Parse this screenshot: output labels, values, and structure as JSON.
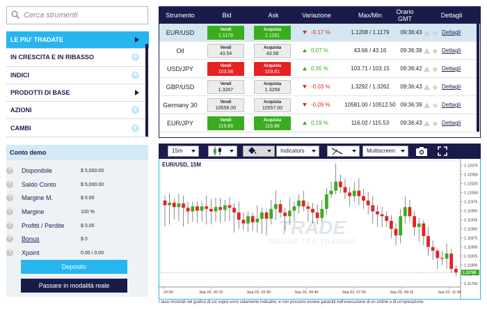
{
  "search": {
    "placeholder": "Cerca strumenti",
    "icon": "search-icon"
  },
  "menu": {
    "items": [
      {
        "label": "LE PIU' TRADATE",
        "active": true,
        "marker": "arrow"
      },
      {
        "label": "IN CRESCITA E IN RIBASSO",
        "active": false,
        "marker": "plus"
      },
      {
        "label": "INDICI",
        "active": false,
        "marker": "plus"
      },
      {
        "label": "PRODOTTI DI BASE",
        "active": false,
        "marker": "arrow"
      },
      {
        "label": "AZIONI",
        "active": false,
        "marker": "plus"
      },
      {
        "label": "CAMBI",
        "active": false,
        "marker": "plus"
      }
    ]
  },
  "demo": {
    "title": "Conto demo",
    "rows": [
      {
        "label": "Disponibile",
        "value": "$ 5,000.00",
        "link": false
      },
      {
        "label": "Saldo Conto",
        "value": "$ 5,000.00",
        "link": false
      },
      {
        "label": "Margine M.",
        "value": "$ 0.00",
        "link": false
      },
      {
        "label": "Margine",
        "value": "100 %",
        "link": false
      },
      {
        "label": "Profitti / Perdite",
        "value": "$ 0.00",
        "link": false
      },
      {
        "label": "Bonus",
        "value": "$ 0",
        "link": true
      },
      {
        "label": "Xpoint",
        "value": "0.00 / 0.00",
        "link": false
      }
    ],
    "help_icon_text": "?",
    "deposit_label": "Deposito",
    "real_label": "Passare in modalità reale"
  },
  "table": {
    "headers": {
      "instrument": "Strumento",
      "bid": "Bid",
      "ask": "Ask",
      "change": "Variazione",
      "maxmin": "Max/Min",
      "time_line1": "Orario",
      "time_line2": "GMT",
      "details": "Dettagli"
    },
    "sell_label": "Vendi",
    "buy_label": "Acquista",
    "details_label": "Dettagli",
    "rows": [
      {
        "name": "EUR/USD",
        "bid": "1.1179",
        "ask": "1.1181",
        "bid_color": "green",
        "ask_color": "green",
        "change": "-0.17 %",
        "dir": "down",
        "maxmin": "1.1208 / 1.1179",
        "time": "09:36:43",
        "selected": true
      },
      {
        "name": "Oil",
        "bid": "43.54",
        "ask": "43.58",
        "bid_color": "grey",
        "ask_color": "grey",
        "change": "0.07 %",
        "dir": "up",
        "maxmin": "43.66 / 43.16",
        "time": "09:36:39",
        "selected": false
      },
      {
        "name": "USD/JPY",
        "bid": "103.58",
        "ask": "103.61",
        "bid_color": "red",
        "ask_color": "red",
        "change": "0.35 %",
        "dir": "up",
        "maxmin": "103.71 / 103.15",
        "time": "09:36:42",
        "selected": false
      },
      {
        "name": "GBP/USD",
        "bid": "1.3267",
        "ask": "1.3269",
        "bid_color": "grey",
        "ask_color": "grey",
        "change": "-0.03 %",
        "dir": "down",
        "maxmin": "1.3292 / 1.3262",
        "time": "09:36:43",
        "selected": false
      },
      {
        "name": "Germany 30",
        "bid": "10556.00",
        "ask": "10557.00",
        "bid_color": "grey",
        "ask_color": "grey",
        "change": "-0.09 %",
        "dir": "down",
        "maxmin": "10581.00 / 10512.50",
        "time": "09:36:39",
        "selected": false
      },
      {
        "name": "EUR/JPY",
        "bid": "115.83",
        "ask": "115.86",
        "bid_color": "green",
        "ask_color": "green",
        "change": "0.19 %",
        "dir": "up",
        "maxmin": "116.02 / 115.53",
        "time": "09:36:43",
        "selected": false
      }
    ],
    "colors": {
      "red": "#e42323",
      "green": "#3aad1e",
      "grey": "#ececec",
      "navy": "#1b1b4b",
      "cyan": "#27b5f0"
    }
  },
  "toolbar": {
    "timeframe": "15m",
    "indicators_label": "Indicators",
    "multiscreen_label": "Multiscreen",
    "icons": [
      "candlestick-icon",
      "fill-bucket-icon",
      "draw-line-icon",
      "camera-icon",
      "fullscreen-icon"
    ]
  },
  "watermark": {
    "line1": "TRADE",
    "line2": "ONLINE CFD TRADING"
  },
  "disclaimer": "I tassi mostrati nel grafico di cui sopra sono solamente indicativi, e non possono essere garantiti nell'esecuzione di un ordine o di un'operazione.",
  "chart_data": {
    "type": "candlestick",
    "title": "EUR/USD, 15M",
    "x_ticks": [
      "22:00",
      "Sep 02, 00:15",
      "Sep 02, 02:30",
      "Sep 02, 04:45",
      "Sep 02, 07:00",
      "Sep 02, 09:15",
      "Sep 02, 11:30"
    ],
    "y_ticks": [
      "1.12075",
      "1.12050",
      "1.12025",
      "1.12000",
      "1.11975",
      "1.11950",
      "1.11925",
      "1.11900",
      "1.11875",
      "1.11850",
      "1.11825",
      "1.11800",
      "1.11775",
      "1.11750"
    ],
    "ylim": [
      1.1174,
      1.12087
    ],
    "current_price": "1.11780",
    "current_value": 1.1178,
    "candles": [
      [
        1.11978,
        1.11965,
        1.11992,
        1.11905
      ],
      [
        1.11965,
        1.11972,
        1.11999,
        1.11912
      ],
      [
        1.11972,
        1.1196,
        1.11985,
        1.11926
      ],
      [
        1.1196,
        1.1197,
        1.11996,
        1.11922
      ],
      [
        1.1197,
        1.11958,
        1.11992,
        1.11906
      ],
      [
        1.11958,
        1.11948,
        1.11975,
        1.11913
      ],
      [
        1.11948,
        1.11962,
        1.11975,
        1.11919
      ],
      [
        1.11962,
        1.1195,
        1.11975,
        1.11917
      ],
      [
        1.1195,
        1.11962,
        1.11975,
        1.1192
      ],
      [
        1.11962,
        1.11955,
        1.11992,
        1.11912
      ],
      [
        1.11955,
        1.11948,
        1.11982,
        1.11912
      ],
      [
        1.11948,
        1.1196,
        1.11985,
        1.11919
      ],
      [
        1.1196,
        1.11952,
        1.11985,
        1.11916
      ],
      [
        1.11952,
        1.11965,
        1.1198,
        1.1192
      ],
      [
        1.11965,
        1.11958,
        1.11988,
        1.11922
      ],
      [
        1.11958,
        1.11945,
        1.1197,
        1.1189
      ],
      [
        1.11945,
        1.11925,
        1.11975,
        1.119
      ],
      [
        1.11925,
        1.11915,
        1.11945,
        1.11896
      ],
      [
        1.11915,
        1.11935,
        1.11948,
        1.1189
      ],
      [
        1.11935,
        1.11918,
        1.11946,
        1.11894
      ],
      [
        1.11918,
        1.11928,
        1.11965,
        1.11889
      ],
      [
        1.11928,
        1.11945,
        1.11958,
        1.11886
      ],
      [
        1.11945,
        1.11928,
        1.11953,
        1.11882
      ],
      [
        1.11928,
        1.11955,
        1.1198,
        1.11912
      ],
      [
        1.11955,
        1.11968,
        1.12005,
        1.11924
      ],
      [
        1.11968,
        1.11945,
        1.1198,
        1.1193
      ],
      [
        1.11945,
        1.11935,
        1.11958,
        1.11895
      ],
      [
        1.11935,
        1.1195,
        1.11985,
        1.1191
      ],
      [
        1.1195,
        1.11962,
        1.11975,
        1.11922
      ],
      [
        1.11962,
        1.11978,
        1.11995,
        1.11942
      ],
      [
        1.11978,
        1.11962,
        1.12005,
        1.11949
      ],
      [
        1.11962,
        1.11955,
        1.11975,
        1.1192
      ],
      [
        1.11955,
        1.11945,
        1.11972,
        1.11915
      ],
      [
        1.11945,
        1.1193,
        1.11968,
        1.11912
      ],
      [
        1.1193,
        1.11955,
        1.1198,
        1.11918
      ],
      [
        1.11955,
        1.11995,
        1.12013,
        1.11938
      ],
      [
        1.11995,
        1.12005,
        1.1203,
        1.11986
      ],
      [
        1.12005,
        1.1203,
        1.1208,
        1.11995
      ],
      [
        1.1203,
        1.12015,
        1.1205,
        1.11998
      ],
      [
        1.12015,
        1.12,
        1.12038,
        1.11982
      ],
      [
        1.12,
        1.1199,
        1.12015,
        1.11962
      ],
      [
        1.1199,
        1.12005,
        1.12028,
        1.11975
      ],
      [
        1.12005,
        1.1199,
        1.1204,
        1.11965
      ],
      [
        1.1199,
        1.11978,
        1.1201,
        1.11955
      ],
      [
        1.11978,
        1.11965,
        1.12002,
        1.1194
      ],
      [
        1.11965,
        1.11948,
        1.1199,
        1.11915
      ],
      [
        1.11948,
        1.1194,
        1.11965,
        1.11905
      ],
      [
        1.1194,
        1.11935,
        1.1196,
        1.11905
      ],
      [
        1.11935,
        1.11922,
        1.11948,
        1.11905
      ],
      [
        1.11922,
        1.119,
        1.11938,
        1.11875
      ],
      [
        1.119,
        1.11882,
        1.11915,
        1.11855
      ],
      [
        1.11882,
        1.11935,
        1.11955,
        1.1186
      ],
      [
        1.11935,
        1.1196,
        1.1199,
        1.11915
      ],
      [
        1.1196,
        1.11935,
        1.1198,
        1.1192
      ],
      [
        1.11935,
        1.11905,
        1.1195,
        1.1188
      ],
      [
        1.11905,
        1.11915,
        1.1193,
        1.11865
      ],
      [
        1.11915,
        1.1188,
        1.11925,
        1.11855
      ],
      [
        1.1188,
        1.1185,
        1.11905,
        1.11825
      ],
      [
        1.1185,
        1.1184,
        1.11868,
        1.11815
      ],
      [
        1.1184,
        1.1182,
        1.11845,
        1.1179
      ],
      [
        1.1182,
        1.11818,
        1.11838,
        1.118
      ],
      [
        1.11818,
        1.11832,
        1.1186,
        1.1179
      ],
      [
        1.11832,
        1.1179,
        1.11845,
        1.11778
      ],
      [
        1.1179,
        1.1178,
        1.118,
        1.1177
      ]
    ]
  }
}
